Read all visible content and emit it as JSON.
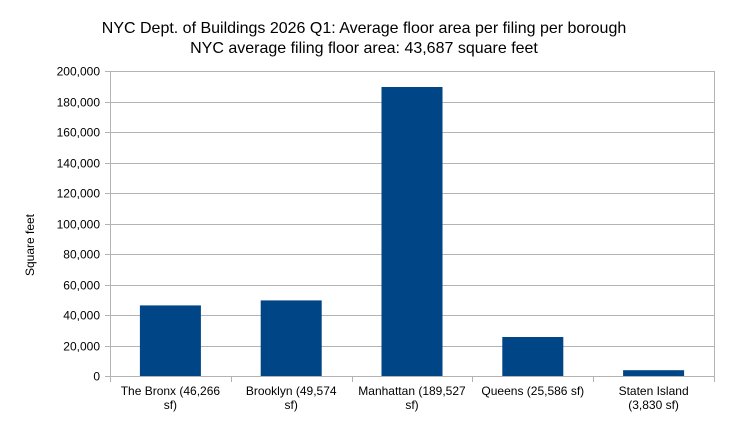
{
  "chart_data": {
    "type": "bar",
    "title": "NYC Dept. of Buildings 2026 Q1: Average floor area per filing per borough",
    "subtitle": "NYC average filing floor area: 43,687 square feet",
    "xlabel": "",
    "ylabel": "Square feet",
    "ylim": [
      0,
      200000
    ],
    "yticks": [
      0,
      20000,
      40000,
      60000,
      80000,
      100000,
      120000,
      140000,
      160000,
      180000,
      200000
    ],
    "ytick_labels": [
      "0",
      "20,000",
      "40,000",
      "60,000",
      "80,000",
      "100,000",
      "120,000",
      "140,000",
      "160,000",
      "180,000",
      "200,000"
    ],
    "grid": true,
    "legend": "none",
    "bar_color": "#004586",
    "categories": [
      [
        "The Bronx (46,266",
        "sf)"
      ],
      [
        "Brooklyn (49,574",
        "sf)"
      ],
      [
        "Manhattan (189,527",
        "sf)"
      ],
      [
        "Queens (25,586 sf)"
      ],
      [
        "Staten Island",
        "(3,830 sf)"
      ]
    ],
    "values": [
      46266,
      49574,
      189527,
      25586,
      3830
    ]
  }
}
